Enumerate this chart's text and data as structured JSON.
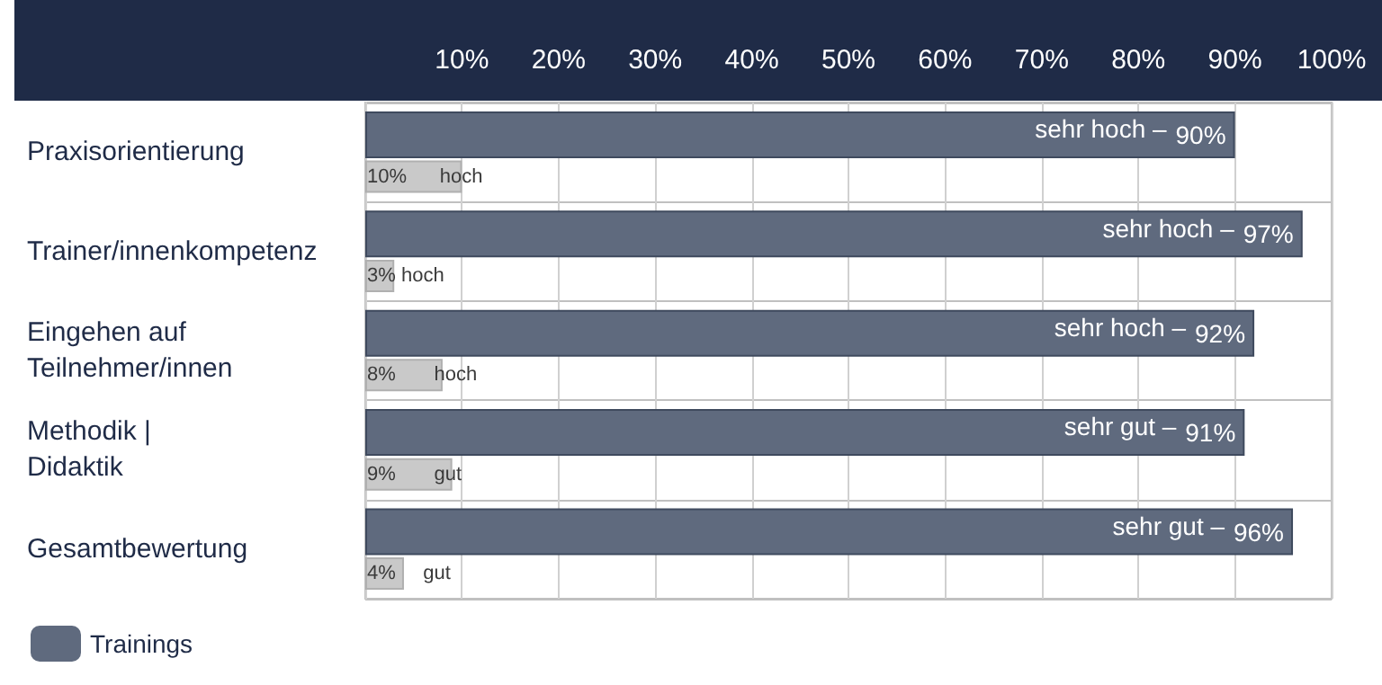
{
  "chart_data": {
    "type": "bar",
    "orientation": "horizontal",
    "categories": [
      "Praxisorientierung",
      "Trainer/innenkompetenz",
      "Eingehen auf\nTeilnehmer/innen",
      "Methodik |\nDidaktik",
      "Gesamtbewertung"
    ],
    "series": [
      {
        "name": "Trainings",
        "color": "#5f6a7e",
        "values": [
          90,
          97,
          92,
          91,
          96
        ],
        "value_labels": [
          "90%",
          "97%",
          "92%",
          "91%",
          "96%"
        ]
      },
      {
        "color": "#c9c9c9",
        "values": [
          10,
          3,
          8,
          9,
          4
        ],
        "value_labels": [
          "10%      hoch",
          "3% hoch",
          "8%       hoch",
          "9%       gut",
          "4%     gut"
        ]
      }
    ],
    "xlim": [
      0,
      100
    ],
    "xticks": [
      {
        "value": 10,
        "label": "10%"
      },
      {
        "value": 20,
        "label": "20%"
      },
      {
        "value": 30,
        "label": "30%"
      },
      {
        "value": 40,
        "label": "40%"
      },
      {
        "value": 50,
        "label": "50%"
      },
      {
        "value": 60,
        "label": "60%"
      },
      {
        "value": 70,
        "label": "70%"
      },
      {
        "value": 80,
        "label": "80%"
      },
      {
        "value": 90,
        "label": "90%"
      },
      {
        "value": 100,
        "label": "100%"
      }
    ],
    "annotations": [
      {
        "text": "sehr hoch –",
        "x": 90,
        "y": "Praxisorientierung"
      },
      {
        "text": "sehr hoch –",
        "x": 97,
        "y": "Trainer/innenkompetenz"
      },
      {
        "text": "sehr hoch –",
        "x": 92,
        "y": "Eingehen auf\nTeilnehmer/innen"
      },
      {
        "text": "sehr gut –",
        "x": 91,
        "y": "Methodik |\nDidaktik"
      },
      {
        "text": "sehr gut –",
        "x": 96,
        "y": "Gesamtbewertung"
      }
    ],
    "grid": true,
    "legend": "bottom left"
  }
}
